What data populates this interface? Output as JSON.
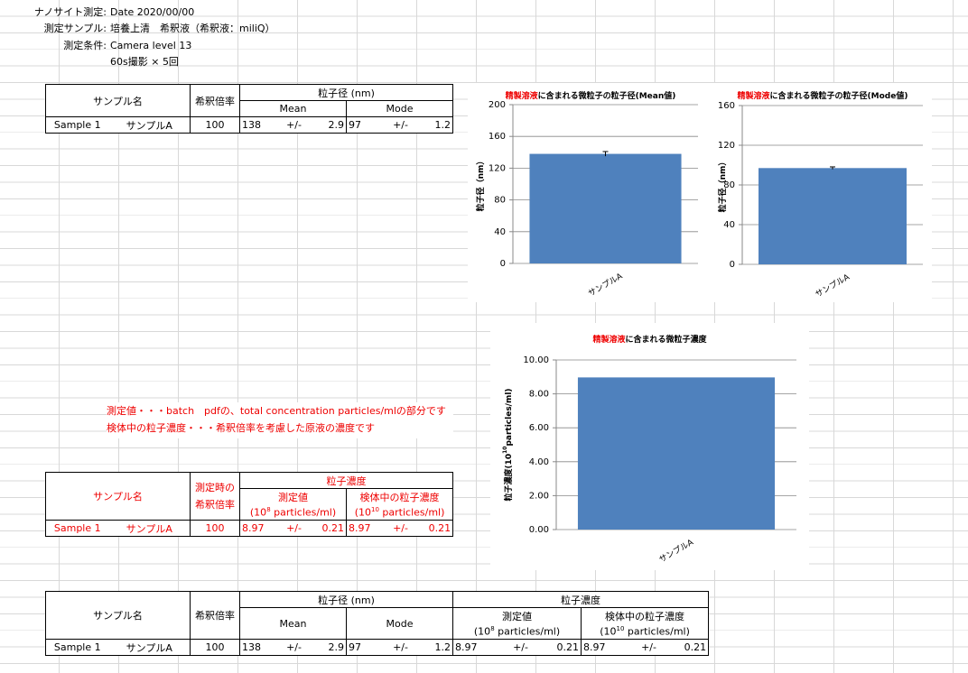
{
  "header": {
    "rows": [
      {
        "label": "ナノサイト測定:",
        "value": "Date 2020/00/00"
      },
      {
        "label": "測定サンプル:",
        "value": "培養上清　希釈液（希釈液：miliQ）"
      },
      {
        "label": "測定条件:",
        "value": "Camera level 13"
      }
    ],
    "extra_condition": "60s撮影 × 5回"
  },
  "table1": {
    "headers": {
      "sample": "サンプル名",
      "dilution": "希釈倍率",
      "size": "粒子径 (nm)",
      "mean": "Mean",
      "mode": "Mode"
    },
    "row": [
      "Sample 1",
      "サンプルA",
      100,
      138,
      "+/-",
      2.9,
      97,
      "+/-",
      1.2
    ]
  },
  "notes": [
    "測定値・・・batch　pdfの、total concentration particles/mlの部分です",
    "検体中の粒子濃度・・・希釈倍率を考慮した原液の濃度です"
  ],
  "table2": {
    "headers": {
      "sample": "サンプル名",
      "dilution_1": "測定時の",
      "dilution_2": "希釈倍率",
      "conc": "粒子濃度",
      "measured": "測定値",
      "unit8": {
        "pre": "(10",
        "exp": "8",
        "post": " particles/ml)"
      },
      "specimen": "検体中の粒子濃度",
      "unit10": {
        "pre": "(10",
        "exp": "10",
        "post": " particles/ml)"
      }
    },
    "row": [
      "Sample 1",
      "サンプルA",
      100,
      8.97,
      "+/-",
      0.21,
      8.97,
      "+/-",
      0.21
    ]
  },
  "table3": {
    "headers": {
      "sample": "サンプル名",
      "dilution": "希釈倍率",
      "size": "粒子径 (nm)",
      "mean": "Mean",
      "mode": "Mode",
      "conc": "粒子濃度",
      "measured": "測定値",
      "unit8": {
        "pre": "(10",
        "exp": "8",
        "post": " particles/ml)"
      },
      "specimen": "検体中の粒子濃度",
      "unit10": {
        "pre": "(10",
        "exp": "10",
        "post": " particles/ml)"
      }
    },
    "row": [
      "Sample 1",
      "サンプルA",
      100,
      138,
      "+/-",
      2.9,
      97,
      "+/-",
      1.2,
      8.97,
      "+/-",
      0.21,
      8.97,
      "+/-",
      0.21
    ]
  },
  "chart_data": [
    {
      "type": "bar",
      "title_highlight": "精製溶液",
      "title": "に含まれる微粒子の粒子径(Mean値)",
      "y_label": {
        "pre": "粒子径（nm）"
      },
      "categories": [
        "サンプルA"
      ],
      "values": [
        138
      ],
      "errors": [
        2.9
      ],
      "color": "#4f81bd",
      "ylim": [
        0,
        200
      ],
      "yticks": [
        0,
        40,
        80,
        120,
        160,
        200
      ],
      "grid": true
    },
    {
      "type": "bar",
      "title_highlight": "精製溶液",
      "title": "に含まれる微粒子の粒子径(Mode値)",
      "y_label": {
        "pre": "粒子径（nm）"
      },
      "categories": [
        "サンプルA"
      ],
      "values": [
        97
      ],
      "errors": [
        1.2
      ],
      "color": "#4f81bd",
      "ylim": [
        0,
        160
      ],
      "yticks": [
        0,
        40,
        80,
        120,
        160
      ],
      "grid": true
    },
    {
      "type": "bar",
      "title_highlight": "精製溶液",
      "title": "に含まれる微粒子濃度",
      "y_label": {
        "pre": "粒子濃度(10",
        "exp": "10",
        "post": "particles/ml)"
      },
      "categories": [
        "サンプルA"
      ],
      "values": [
        8.97
      ],
      "color": "#4f81bd",
      "ylim": [
        0,
        10
      ],
      "yticks": [
        {
          "value": 0,
          "label": "0.00"
        },
        {
          "value": 2,
          "label": "2.00"
        },
        {
          "value": 4,
          "label": "4.00"
        },
        {
          "value": 6,
          "label": "6.00"
        },
        {
          "value": 8,
          "label": "8.00"
        },
        {
          "value": 10,
          "label": "10.00"
        }
      ],
      "grid": true
    }
  ]
}
